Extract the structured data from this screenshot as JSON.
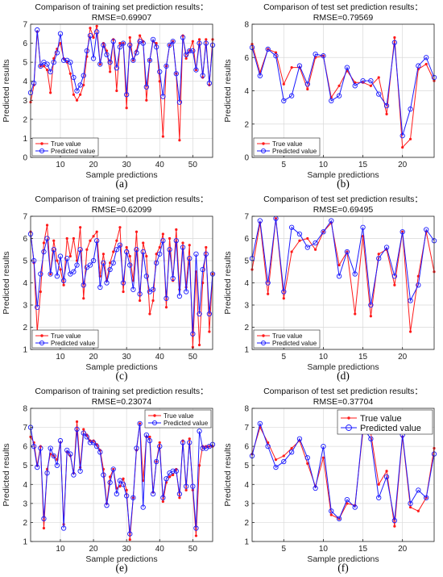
{
  "colors": {
    "true": "#ff1a1a",
    "pred": "#1a1aff",
    "axis": "#222222",
    "grid": "#d9d9d9"
  },
  "chart_data": [
    {
      "id": "a",
      "type": "line",
      "title": "Comparison of training set prediction results：",
      "subtitle": "RMSE=0.69907",
      "caption": "(a)",
      "xlabel": "Sample predictions",
      "ylabel": "Predicted results",
      "xlim": [
        1,
        56
      ],
      "ylim": [
        0,
        7
      ],
      "xticks": [
        10,
        20,
        30,
        40,
        50
      ],
      "yticks": [
        0,
        1,
        2,
        3,
        4,
        5,
        6,
        7
      ],
      "grid": true,
      "legend": "bottom-left",
      "series": [
        {
          "name": "True value",
          "marker": "dot",
          "values": [
            2.9,
            3.8,
            6.6,
            4.8,
            4.8,
            4.6,
            3.4,
            5.2,
            5.7,
            6.0,
            5.2,
            5.0,
            4.4,
            3.3,
            3.0,
            3.3,
            3.8,
            5.3,
            6.8,
            6.3,
            6.9,
            4.9,
            6.0,
            5.6,
            4.5,
            6.2,
            3.5,
            6.0,
            6.0,
            2.6,
            6.3,
            5.1,
            5.6,
            6.4,
            6.1,
            3.0,
            5.1,
            6.1,
            6.0,
            4.0,
            1.1,
            4.8,
            5.9,
            6.1,
            4.4,
            0.9,
            6.4,
            5.2,
            5.6,
            6.1,
            4.6,
            6.2,
            4.2,
            6.2,
            3.8,
            6.2
          ]
        },
        {
          "name": "Predicted value",
          "marker": "circle",
          "values": [
            3.4,
            3.9,
            6.7,
            4.8,
            5.0,
            4.9,
            4.5,
            5.0,
            5.5,
            6.5,
            5.1,
            5.1,
            5.0,
            4.2,
            3.5,
            3.8,
            4.3,
            5.6,
            6.4,
            5.2,
            6.6,
            4.9,
            5.9,
            5.4,
            5.0,
            6.1,
            4.7,
            5.8,
            6.0,
            3.3,
            5.9,
            5.1,
            5.5,
            6.1,
            6.0,
            3.7,
            5.1,
            6.2,
            5.8,
            4.5,
            3.2,
            4.8,
            5.9,
            6.1,
            4.4,
            2.9,
            6.3,
            5.4,
            5.6,
            5.6,
            4.6,
            6.0,
            4.3,
            6.0,
            3.9,
            5.9
          ]
        }
      ]
    },
    {
      "id": "b",
      "type": "line",
      "title": "Comparison of test set prediction results：",
      "subtitle": "RMSE=0.79569",
      "caption": "(b)",
      "xlabel": "Sample predictions",
      "ylabel": "Predicted results",
      "xlim": [
        1,
        24
      ],
      "ylim": [
        0,
        8
      ],
      "xticks": [
        5,
        10,
        15,
        20
      ],
      "yticks": [
        0,
        2,
        4,
        6,
        8
      ],
      "grid": true,
      "legend": "bottom-left",
      "series": [
        {
          "name": "True value",
          "marker": "dot",
          "values": [
            6.8,
            5.1,
            6.5,
            6.3,
            4.4,
            5.4,
            5.4,
            4.1,
            6.0,
            6.1,
            3.6,
            4.3,
            5.2,
            4.5,
            4.5,
            4.3,
            4.8,
            2.6,
            7.2,
            0.6,
            1.1,
            5.3,
            5.6,
            4.6
          ]
        },
        {
          "name": "Predicted value",
          "marker": "circle",
          "values": [
            6.6,
            4.9,
            6.5,
            6.1,
            3.4,
            3.7,
            5.5,
            4.4,
            6.2,
            6.1,
            3.4,
            3.7,
            5.4,
            4.3,
            4.6,
            4.6,
            3.8,
            3.1,
            6.9,
            1.3,
            2.9,
            5.5,
            6.0,
            4.8
          ]
        }
      ]
    },
    {
      "id": "c",
      "type": "line",
      "title": "Comparison of training set prediction results：",
      "subtitle": "RMSE=0.62099",
      "caption": "(c)",
      "xlabel": "Sample predictions",
      "ylabel": "Predicted results",
      "xlim": [
        1,
        56
      ],
      "ylim": [
        1,
        7
      ],
      "xticks": [
        10,
        20,
        30,
        40,
        50
      ],
      "yticks": [
        1,
        2,
        3,
        4,
        5,
        6,
        7
      ],
      "grid": true,
      "legend": "bottom-left",
      "series": [
        {
          "name": "True value",
          "marker": "dot",
          "values": [
            6.3,
            4.9,
            1.8,
            3.6,
            5.8,
            6.6,
            4.4,
            5.9,
            5.0,
            4.6,
            3.9,
            6.0,
            5.2,
            6.0,
            5.0,
            6.5,
            3.3,
            5.5,
            5.9,
            6.1,
            6.3,
            4.3,
            5.3,
            4.1,
            4.9,
            5.4,
            5.9,
            6.5,
            3.6,
            5.6,
            5.2,
            4.1,
            6.3,
            3.2,
            5.8,
            5.2,
            2.6,
            3.2,
            5.3,
            5.6,
            6.2,
            2.9,
            6.0,
            4.1,
            6.4,
            3.7,
            5.8,
            3.8,
            5.7,
            1.1,
            4.5,
            1.2,
            4.0,
            5.6,
            1.8,
            4.4
          ]
        },
        {
          "name": "Predicted value",
          "marker": "circle",
          "values": [
            6.2,
            5.0,
            2.9,
            4.4,
            5.4,
            6.0,
            4.4,
            5.5,
            4.3,
            5.2,
            4.1,
            5.1,
            4.4,
            4.5,
            4.8,
            5.5,
            3.9,
            4.7,
            4.8,
            5.0,
            5.9,
            3.8,
            4.9,
            4.0,
            4.6,
            4.9,
            5.5,
            5.7,
            4.0,
            5.4,
            4.8,
            3.7,
            5.5,
            3.5,
            5.4,
            4.3,
            3.6,
            3.7,
            4.9,
            5.3,
            5.9,
            3.3,
            5.5,
            4.2,
            5.9,
            3.4,
            5.6,
            3.6,
            5.1,
            1.7,
            5.3,
            2.6,
            4.6,
            5.3,
            2.6,
            4.4
          ]
        }
      ]
    },
    {
      "id": "d",
      "type": "line",
      "title": "Comparison of test set prediction results：",
      "subtitle": "RMSE=0.69495",
      "caption": "(d)",
      "xlabel": "Sample predictions",
      "ylabel": "Predicted results",
      "xlim": [
        1,
        24
      ],
      "ylim": [
        1,
        7
      ],
      "xticks": [
        5,
        10,
        15,
        20
      ],
      "yticks": [
        1,
        2,
        3,
        4,
        5,
        6,
        7
      ],
      "grid": true,
      "legend": "bottom-left",
      "series": [
        {
          "name": "True value",
          "marker": "dot",
          "values": [
            4.6,
            6.7,
            3.5,
            6.9,
            3.3,
            5.4,
            5.9,
            6.0,
            5.5,
            6.3,
            6.7,
            4.8,
            5.4,
            2.6,
            6.1,
            2.5,
            5.3,
            5.5,
            3.9,
            6.3,
            1.8,
            4.3,
            6.3,
            4.5
          ]
        },
        {
          "name": "Predicted value",
          "marker": "circle",
          "values": [
            5.1,
            6.8,
            4.0,
            6.9,
            3.6,
            6.5,
            6.2,
            5.6,
            5.8,
            6.3,
            6.8,
            4.3,
            5.4,
            4.4,
            6.5,
            3.0,
            5.1,
            5.6,
            4.3,
            6.3,
            3.2,
            3.9,
            6.4,
            5.9
          ]
        }
      ]
    },
    {
      "id": "e",
      "type": "line",
      "title": "Comparison of training set prediction results：",
      "subtitle": "RMSE=0.23074",
      "caption": "(e)",
      "xlabel": "Sample predictions",
      "ylabel": "Predicted results",
      "xlim": [
        1,
        56
      ],
      "ylim": [
        1,
        8
      ],
      "xticks": [
        10,
        20,
        30,
        40,
        50
      ],
      "yticks": [
        1,
        2,
        3,
        4,
        5,
        6,
        7,
        8
      ],
      "grid": true,
      "legend": "top-right",
      "series": [
        {
          "name": "True value",
          "marker": "dot",
          "values": [
            6.5,
            6.2,
            5.0,
            6.0,
            1.7,
            4.8,
            5.6,
            5.5,
            5.3,
            6.2,
            1.9,
            5.7,
            5.5,
            4.6,
            7.3,
            4.9,
            6.9,
            6.6,
            6.3,
            6.3,
            6.1,
            5.8,
            4.8,
            3.0,
            4.4,
            4.8,
            3.8,
            3.9,
            4.3,
            3.7,
            1.1,
            3.3,
            5.8,
            7.2,
            4.2,
            6.5,
            6.5,
            3.6,
            5.2,
            6.2,
            3.1,
            4.1,
            4.4,
            4.5,
            4.8,
            3.3,
            6.3,
            3.7,
            6.4,
            3.7,
            1.3,
            5.0,
            6.0,
            6.0,
            6.0,
            6.0
          ]
        },
        {
          "name": "Predicted value",
          "marker": "circle",
          "values": [
            7.0,
            6.0,
            4.9,
            5.9,
            2.2,
            4.6,
            5.9,
            5.5,
            5.0,
            6.3,
            1.7,
            5.8,
            5.6,
            4.5,
            6.9,
            4.7,
            6.7,
            6.5,
            6.2,
            6.2,
            6.0,
            5.7,
            4.5,
            2.9,
            4.1,
            4.8,
            3.5,
            4.2,
            4.0,
            3.4,
            1.4,
            3.3,
            5.9,
            7.2,
            2.8,
            6.6,
            6.3,
            3.5,
            5.2,
            6.0,
            3.3,
            4.3,
            4.6,
            4.7,
            4.7,
            3.5,
            6.2,
            3.9,
            6.2,
            3.9,
            1.7,
            6.8,
            5.9,
            5.9,
            6.0,
            6.1
          ]
        }
      ]
    },
    {
      "id": "f",
      "type": "line",
      "title": "Comparison of test set prediction results：",
      "subtitle": "RMSE=0.37704",
      "caption": "(f)",
      "xlabel": "Sample predictions",
      "ylabel": "Predicted results",
      "xlim": [
        1,
        24
      ],
      "ylim": [
        1,
        8
      ],
      "xticks": [
        5,
        10,
        15,
        20
      ],
      "yticks": [
        1,
        2,
        3,
        4,
        5,
        6,
        7,
        8
      ],
      "grid": true,
      "legend": "top-right",
      "legend_large": true,
      "series": [
        {
          "name": "True value",
          "marker": "dot",
          "values": [
            5.6,
            7.0,
            6.2,
            5.3,
            5.5,
            5.9,
            6.3,
            5.1,
            3.9,
            5.4,
            2.4,
            2.2,
            3.0,
            2.9,
            6.8,
            6.7,
            4.0,
            4.7,
            1.8,
            6.5,
            2.8,
            2.6,
            3.3,
            5.9
          ]
        },
        {
          "name": "Predicted value",
          "marker": "circle",
          "values": [
            5.5,
            7.2,
            6.0,
            4.9,
            5.2,
            5.7,
            6.4,
            5.4,
            3.8,
            6.0,
            2.6,
            2.2,
            3.2,
            2.8,
            7.0,
            6.4,
            3.3,
            4.4,
            2.1,
            6.6,
            3.0,
            3.7,
            3.3,
            5.6
          ]
        }
      ]
    }
  ]
}
